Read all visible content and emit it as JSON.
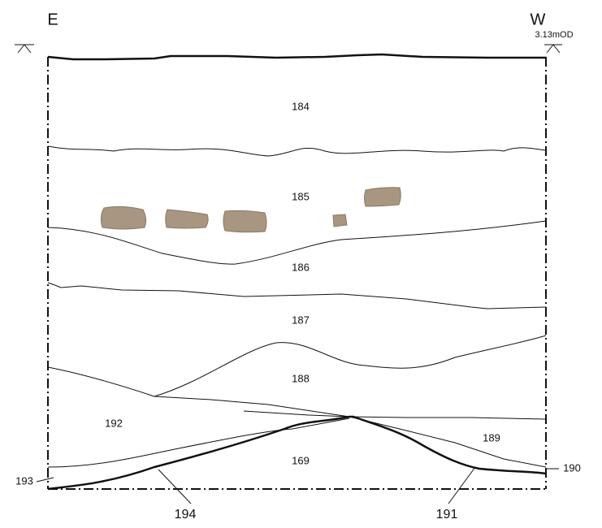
{
  "header": {
    "left": "E",
    "right": "W",
    "datum": "3.13mOD"
  },
  "layers": [
    {
      "label": "184"
    },
    {
      "label": "185"
    },
    {
      "label": "186"
    },
    {
      "label": "187"
    },
    {
      "label": "188"
    },
    {
      "label": "192"
    },
    {
      "label": "189"
    },
    {
      "label": "169"
    }
  ],
  "callouts": [
    {
      "label": "193"
    },
    {
      "label": "190"
    },
    {
      "label": "194"
    },
    {
      "label": "191"
    }
  ]
}
